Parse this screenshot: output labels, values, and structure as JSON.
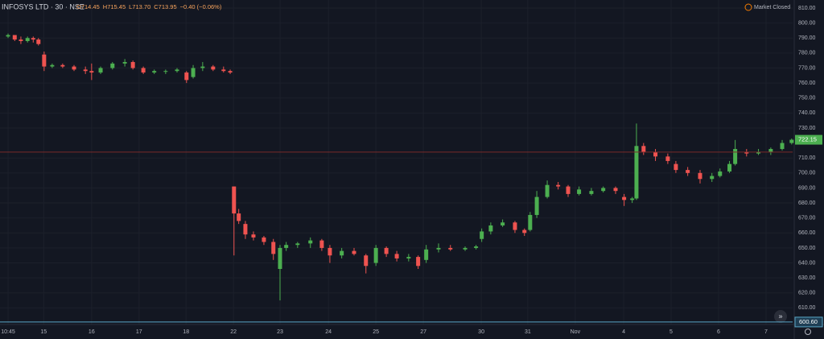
{
  "chart_data": {
    "type": "candlestick",
    "title": "INFOSYS LTD · 30 · NSE",
    "legend_ohlc": [
      {
        "value": 714.45,
        "label": "O714.45"
      },
      {
        "value": 715.45,
        "label": "H715.45"
      },
      {
        "value": 713.7,
        "label": "L713.70"
      },
      {
        "value": 713.95,
        "label": "C713.95"
      }
    ],
    "change_label": "−0.40 (−0.06%)",
    "status": "Market Closed",
    "up_color": "#4caf50",
    "down_color": "#ef5350",
    "crosshair": {
      "value": 600.6,
      "label": "600.60"
    },
    "xlim": [
      -0.17,
      16.53
    ],
    "xticks": [
      {
        "value": 0,
        "label": "10:45"
      },
      {
        "value": 0.75,
        "label": "15"
      },
      {
        "value": 1.76,
        "label": "16"
      },
      {
        "value": 2.76,
        "label": "17"
      },
      {
        "value": 3.75,
        "label": "18"
      },
      {
        "value": 4.75,
        "label": "22"
      },
      {
        "value": 5.73,
        "label": "23"
      },
      {
        "value": 6.75,
        "label": "24"
      },
      {
        "value": 7.75,
        "label": "25"
      },
      {
        "value": 8.75,
        "label": "27"
      },
      {
        "value": 9.97,
        "label": "30"
      },
      {
        "value": 10.95,
        "label": "31"
      },
      {
        "value": 11.95,
        "label": "Nov"
      },
      {
        "value": 12.97,
        "label": "4"
      },
      {
        "value": 13.97,
        "label": "5"
      },
      {
        "value": 14.97,
        "label": "6"
      },
      {
        "value": 15.97,
        "label": "7"
      }
    ],
    "ylim": [
      600,
      810
    ],
    "yticks": [
      {
        "value": 610,
        "label": "610.00"
      },
      {
        "value": 620,
        "label": "620.00"
      },
      {
        "value": 630,
        "label": "630.00"
      },
      {
        "value": 640,
        "label": "640.00"
      },
      {
        "value": 650,
        "label": "650.00"
      },
      {
        "value": 660,
        "label": "660.00"
      },
      {
        "value": 670,
        "label": "670.00"
      },
      {
        "value": 680,
        "label": "680.00"
      },
      {
        "value": 690,
        "label": "690.00"
      },
      {
        "value": 700,
        "label": "700.00"
      },
      {
        "value": 710,
        "label": "710.00"
      },
      {
        "value": 730,
        "label": "730.00"
      },
      {
        "value": 740,
        "label": "740.00"
      },
      {
        "value": 750,
        "label": "750.00"
      },
      {
        "value": 760,
        "label": "760.00"
      },
      {
        "value": 770,
        "label": "770.00"
      },
      {
        "value": 780,
        "label": "780.00"
      },
      {
        "value": 790,
        "label": "790.00"
      },
      {
        "value": 800,
        "label": "800.00"
      },
      {
        "value": 810,
        "label": "810.00"
      }
    ],
    "grid": true,
    "x": [
      0,
      0.14,
      0.27,
      0.41,
      0.53,
      0.64,
      0.76,
      0.93,
      1.15,
      1.39,
      1.63,
      1.76,
      1.95,
      2.2,
      2.46,
      2.63,
      2.85,
      3.08,
      3.32,
      3.56,
      3.76,
      3.9,
      4.1,
      4.32,
      4.54,
      4.68,
      4.76,
      4.86,
      5.0,
      5.17,
      5.39,
      5.59,
      5.73,
      5.86,
      6.1,
      6.37,
      6.61,
      6.78,
      7.03,
      7.29,
      7.54,
      7.75,
      7.97,
      8.19,
      8.44,
      8.64,
      8.81,
      9.07,
      9.32,
      9.63,
      9.86,
      9.98,
      10.17,
      10.42,
      10.68,
      10.88,
      11.0,
      11.14,
      11.36,
      11.59,
      11.8,
      12.03,
      12.29,
      12.54,
      12.8,
      12.98,
      13.15,
      13.24,
      13.39,
      13.64,
      13.9,
      14.07,
      14.32,
      14.58,
      14.83,
      15.0,
      15.2,
      15.32,
      15.56,
      15.81,
      16.07,
      16.31,
      16.51
    ],
    "open": [
      791,
      792,
      789,
      788,
      790,
      789,
      779,
      771,
      772,
      771,
      769,
      768,
      767,
      770,
      773,
      774,
      770,
      767,
      768,
      768,
      767,
      764,
      770,
      771,
      769,
      768,
      691,
      673,
      666,
      659,
      657,
      654,
      636,
      650,
      652,
      653,
      655,
      650,
      645,
      648,
      645,
      640,
      650,
      646,
      643,
      644,
      642,
      649,
      650,
      649,
      650,
      656,
      661,
      665,
      667,
      662,
      662,
      672,
      684,
      692,
      691,
      686,
      686,
      688,
      690,
      684,
      682,
      683,
      718,
      714,
      711,
      706,
      702,
      700,
      696,
      698,
      701,
      706,
      714,
      713,
      714,
      716,
      720
    ],
    "high": [
      793,
      792,
      791,
      791,
      791,
      790,
      781,
      773,
      773,
      772,
      771,
      773,
      771,
      774,
      776,
      775,
      771,
      769,
      769,
      770,
      768,
      772,
      774,
      772,
      771,
      769,
      691,
      676,
      668,
      661,
      658,
      656,
      652,
      654,
      654,
      657,
      656,
      652,
      650,
      650,
      646,
      652,
      651,
      648,
      646,
      645,
      652,
      653,
      652,
      651,
      652,
      663,
      667,
      669,
      668,
      663,
      674,
      688,
      695,
      694,
      692,
      691,
      690,
      691,
      691,
      686,
      684,
      733,
      720,
      716,
      713,
      708,
      704,
      702,
      700,
      703,
      708,
      722,
      716,
      716,
      717,
      722,
      723
    ],
    "low": [
      790,
      788,
      786,
      787,
      787,
      785,
      768,
      770,
      770,
      768,
      766,
      762,
      766,
      769,
      771,
      769,
      766,
      766,
      766,
      767,
      760,
      763,
      768,
      768,
      767,
      766,
      645,
      666,
      656,
      655,
      652,
      642,
      615,
      648,
      650,
      650,
      648,
      640,
      643,
      645,
      633,
      638,
      644,
      641,
      641,
      636,
      640,
      647,
      648,
      648,
      649,
      654,
      659,
      664,
      660,
      658,
      661,
      670,
      683,
      689,
      684,
      685,
      685,
      687,
      686,
      678,
      680,
      682,
      712,
      708,
      706,
      700,
      698,
      693,
      694,
      697,
      700,
      705,
      711,
      712,
      712,
      715,
      719
    ],
    "close": [
      792,
      789,
      788,
      790,
      789,
      786,
      771,
      772,
      771,
      769,
      768,
      767,
      770,
      773,
      774,
      770,
      767,
      768,
      768,
      769,
      762,
      770,
      771,
      769,
      768,
      767,
      673,
      668,
      659,
      657,
      654,
      646,
      650,
      652,
      653,
      655,
      650,
      645,
      648,
      646,
      638,
      650,
      646,
      643,
      644,
      638,
      649,
      650,
      649,
      650,
      651,
      661,
      665,
      667,
      662,
      660,
      672,
      684,
      692,
      691,
      686,
      689,
      688,
      690,
      688,
      682,
      683,
      718,
      714,
      711,
      708,
      702,
      700,
      696,
      698,
      701,
      706,
      716,
      713,
      714,
      716,
      720,
      722.15
    ]
  }
}
